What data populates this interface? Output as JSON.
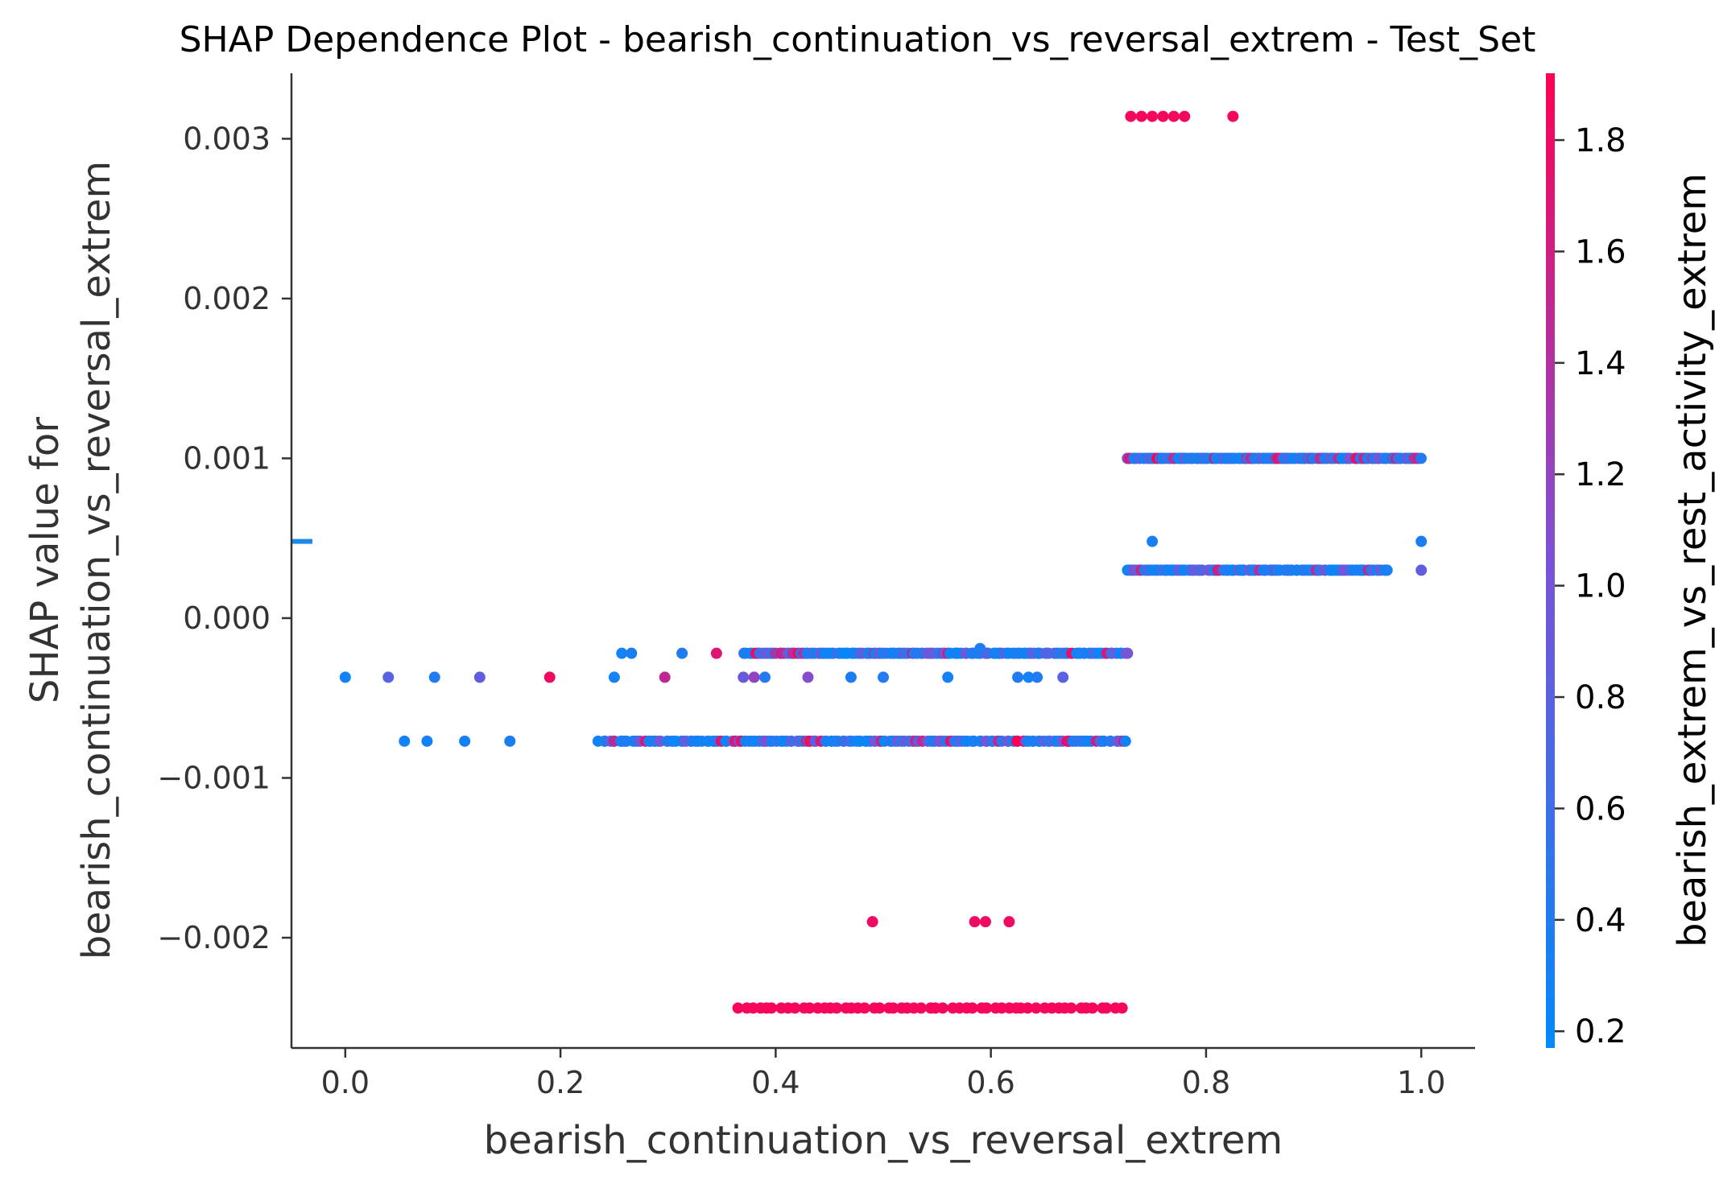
{
  "chart_data": {
    "type": "scatter",
    "title": "SHAP Dependence Plot - bearish_continuation_vs_reversal_extrem - Test_Set",
    "xlabel": "bearish_continuation_vs_reversal_extrem",
    "ylabel_line1": "SHAP value for",
    "ylabel_line2": "bearish_continuation_vs_reversal_extrem",
    "colorbar_label": "bearish_extrem_vs_rest_activity_extrem",
    "xlim": [
      -0.05,
      1.05
    ],
    "ylim": [
      -0.00269,
      0.00341
    ],
    "x_ticks": [
      0.0,
      0.2,
      0.4,
      0.6,
      0.8,
      1.0
    ],
    "x_tick_labels": [
      "0.0",
      "0.2",
      "0.4",
      "0.6",
      "0.8",
      "1.0"
    ],
    "y_ticks": [
      -0.002,
      -0.001,
      0.0,
      0.001,
      0.002,
      0.003
    ],
    "y_tick_labels": [
      "−0.002",
      "−0.001",
      "0.000",
      "0.001",
      "0.002",
      "0.003"
    ],
    "colorbar_range": [
      0.17,
      1.92
    ],
    "colorbar_ticks": [
      0.2,
      0.4,
      0.6,
      0.8,
      1.0,
      1.2,
      1.4,
      1.6,
      1.8
    ],
    "colorbar_tick_labels": [
      "0.2",
      "0.4",
      "0.6",
      "0.8",
      "1.0",
      "1.2",
      "1.4",
      "1.6",
      "1.8"
    ],
    "colormap": [
      "#008afb",
      "#7c52d6",
      "#ff0052"
    ],
    "missing_value_marker": {
      "y": 0.00048,
      "color": "#1e88e5"
    },
    "series": [
      {
        "x": 0.0,
        "y": -0.00037,
        "c": 0.3
      },
      {
        "x": 0.04,
        "y": -0.00037,
        "c": 0.8
      },
      {
        "x": 0.083,
        "y": -0.00037,
        "c": 0.4
      },
      {
        "x": 0.125,
        "y": -0.00037,
        "c": 0.85
      },
      {
        "x": 0.19,
        "y": -0.00037,
        "c": 1.8
      },
      {
        "x": 0.25,
        "y": -0.00037,
        "c": 0.3
      },
      {
        "x": 0.297,
        "y": -0.00037,
        "c": 1.5
      },
      {
        "x": 0.37,
        "y": -0.00037,
        "c": 0.9
      },
      {
        "x": 0.38,
        "y": -0.00037,
        "c": 1.2
      },
      {
        "x": 0.39,
        "y": -0.00037,
        "c": 0.4
      },
      {
        "x": 0.43,
        "y": -0.00037,
        "c": 1.1
      },
      {
        "x": 0.47,
        "y": -0.00037,
        "c": 0.35
      },
      {
        "x": 0.5,
        "y": -0.00037,
        "c": 0.4
      },
      {
        "x": 0.56,
        "y": -0.00037,
        "c": 0.3
      },
      {
        "x": 0.625,
        "y": -0.00037,
        "c": 0.4
      },
      {
        "x": 0.635,
        "y": -0.00037,
        "c": 0.3
      },
      {
        "x": 0.643,
        "y": -0.00037,
        "c": 0.4
      },
      {
        "x": 0.667,
        "y": -0.00037,
        "c": 0.8
      },
      {
        "x": 0.257,
        "y": -0.00022,
        "c": 0.3
      },
      {
        "x": 0.266,
        "y": -0.00022,
        "c": 0.35
      },
      {
        "x": 0.313,
        "y": -0.00022,
        "c": 0.4
      },
      {
        "x": 0.345,
        "y": -0.00022,
        "c": 1.7
      },
      {
        "x": 0.59,
        "y": -0.00019,
        "c": 0.4
      },
      {
        "x": 0.055,
        "y": -0.00077,
        "c": 0.3
      },
      {
        "x": 0.076,
        "y": -0.00077,
        "c": 0.3
      },
      {
        "x": 0.111,
        "y": -0.00077,
        "c": 0.3
      },
      {
        "x": 0.153,
        "y": -0.00077,
        "c": 0.35
      },
      {
        "x": 0.235,
        "y": -0.00077,
        "c": 0.3
      },
      {
        "x": 0.49,
        "y": -0.0019,
        "c": 1.8
      },
      {
        "x": 0.585,
        "y": -0.0019,
        "c": 1.8
      },
      {
        "x": 0.595,
        "y": -0.0019,
        "c": 1.8
      },
      {
        "x": 0.617,
        "y": -0.0019,
        "c": 1.8
      },
      {
        "x": 0.73,
        "y": 0.00314,
        "c": 1.85
      },
      {
        "x": 0.74,
        "y": 0.00314,
        "c": 1.85
      },
      {
        "x": 0.75,
        "y": 0.00314,
        "c": 1.85
      },
      {
        "x": 0.76,
        "y": 0.00314,
        "c": 1.85
      },
      {
        "x": 0.77,
        "y": 0.00314,
        "c": 1.85
      },
      {
        "x": 0.78,
        "y": 0.00314,
        "c": 1.85
      },
      {
        "x": 0.825,
        "y": 0.00314,
        "c": 1.85
      },
      {
        "x": 0.75,
        "y": 0.00048,
        "c": 0.35
      },
      {
        "x": 1.0,
        "y": 0.00048,
        "c": 0.35
      },
      {
        "x": 1.0,
        "y": 0.0003,
        "c": 0.85
      }
    ],
    "series_dense": [
      {
        "y": -0.00022,
        "x0": 0.37,
        "x1": 0.727,
        "seed": 11,
        "n": 140,
        "hot": 0.12
      },
      {
        "y": -0.00077,
        "x0": 0.24,
        "x1": 0.727,
        "seed": 23,
        "n": 170,
        "hot": 0.15
      },
      {
        "y": -0.00244,
        "x0": 0.365,
        "x1": 0.722,
        "seed": 37,
        "n": 55,
        "hot": 1.0
      },
      {
        "y": 0.001,
        "x0": 0.727,
        "x1": 1.0,
        "seed": 51,
        "n": 170,
        "hot": 0.15
      },
      {
        "y": 0.0003,
        "x0": 0.727,
        "x1": 0.97,
        "seed": 67,
        "n": 110,
        "hot": 0.1
      }
    ]
  }
}
